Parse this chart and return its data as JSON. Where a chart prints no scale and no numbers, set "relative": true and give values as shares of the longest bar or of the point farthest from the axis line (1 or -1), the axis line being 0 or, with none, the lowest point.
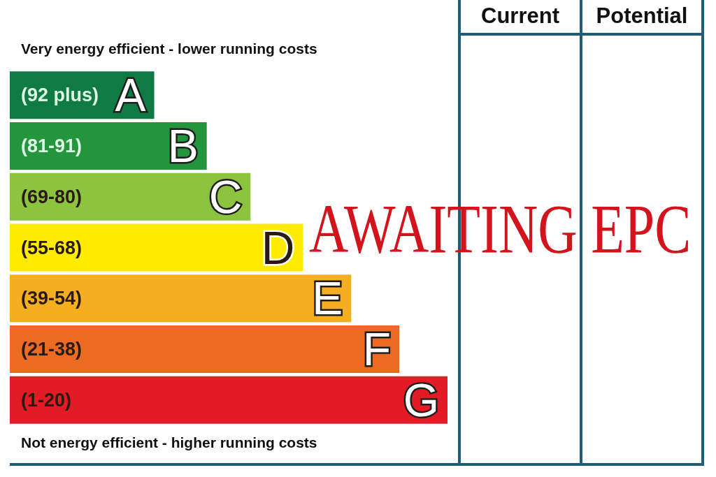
{
  "chart_data": {
    "type": "bar",
    "orientation": "horizontal",
    "relative": true,
    "categories": [
      "A",
      "B",
      "C",
      "D",
      "E",
      "F",
      "G"
    ],
    "values": [
      0.33,
      0.45,
      0.55,
      0.67,
      0.78,
      0.89,
      1
    ],
    "colors": [
      "#0f7a44",
      "#23953c",
      "#8cc43f",
      "#ffeb00",
      "#f5ae1f",
      "#ec6b23",
      "#e21b24"
    ],
    "annotations": [
      "Very energy efficient - lower running costs",
      "AWAITING EPC",
      "Not energy efficient - higher running costs",
      "Current",
      "Potential",
      "(92 plus)",
      "(81-91)",
      "(69-80)",
      "(55-68)",
      "(39-54)",
      "(21-38)",
      "(1-20)"
    ]
  }
}
